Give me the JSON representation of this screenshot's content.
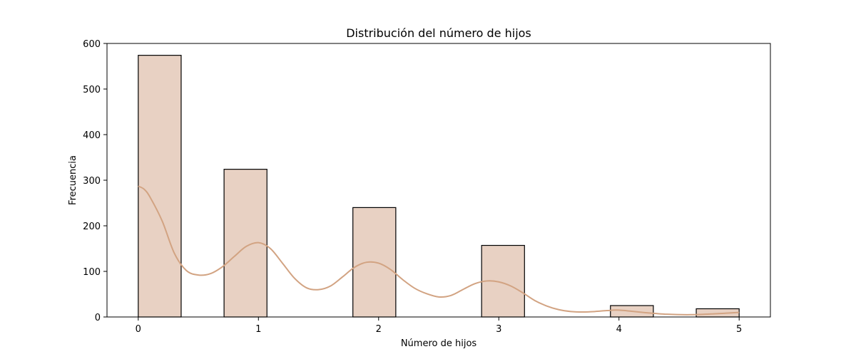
{
  "chart_data": {
    "type": "bar",
    "title": "Distribución del número de hijos",
    "xlabel": "Número de hijos",
    "ylabel": "Frecuencia",
    "xlim": [
      -0.26,
      5.26
    ],
    "ylim": [
      0,
      600
    ],
    "xticks": [
      0,
      1,
      2,
      3,
      4,
      5
    ],
    "yticks": [
      0,
      100,
      200,
      300,
      400,
      500,
      600
    ],
    "bins": [
      {
        "x_start": 0.0,
        "x_end": 0.357,
        "value": 574
      },
      {
        "x_start": 0.714,
        "x_end": 1.071,
        "value": 324
      },
      {
        "x_start": 1.786,
        "x_end": 2.143,
        "value": 240
      },
      {
        "x_start": 2.857,
        "x_end": 3.214,
        "value": 157
      },
      {
        "x_start": 3.929,
        "x_end": 4.286,
        "value": 25
      },
      {
        "x_start": 4.643,
        "x_end": 5.0,
        "value": 18
      }
    ],
    "kde": {
      "x": [
        0.0,
        0.05,
        0.1,
        0.2,
        0.3,
        0.4,
        0.5,
        0.6,
        0.7,
        0.8,
        0.9,
        1.0,
        1.1,
        1.2,
        1.3,
        1.4,
        1.5,
        1.6,
        1.7,
        1.8,
        1.9,
        2.0,
        2.1,
        2.2,
        2.3,
        2.4,
        2.5,
        2.6,
        2.7,
        2.8,
        2.9,
        3.0,
        3.1,
        3.2,
        3.3,
        3.4,
        3.5,
        3.6,
        3.7,
        3.8,
        3.9,
        4.0,
        4.2,
        4.4,
        4.6,
        4.8,
        5.0
      ],
      "y": [
        287,
        280,
        262,
        210,
        140,
        102,
        92,
        95,
        110,
        133,
        155,
        163,
        150,
        118,
        85,
        64,
        60,
        68,
        88,
        109,
        120,
        118,
        104,
        82,
        63,
        51,
        44,
        47,
        60,
        73,
        79,
        77,
        68,
        53,
        36,
        24,
        16,
        12,
        11,
        12,
        14,
        15,
        10,
        6,
        5,
        7,
        10
      ]
    },
    "grid": false,
    "colors": {
      "bar_fill": "#e8d1c3",
      "bar_edge": "#000000",
      "kde_line": "#d2a382"
    }
  }
}
